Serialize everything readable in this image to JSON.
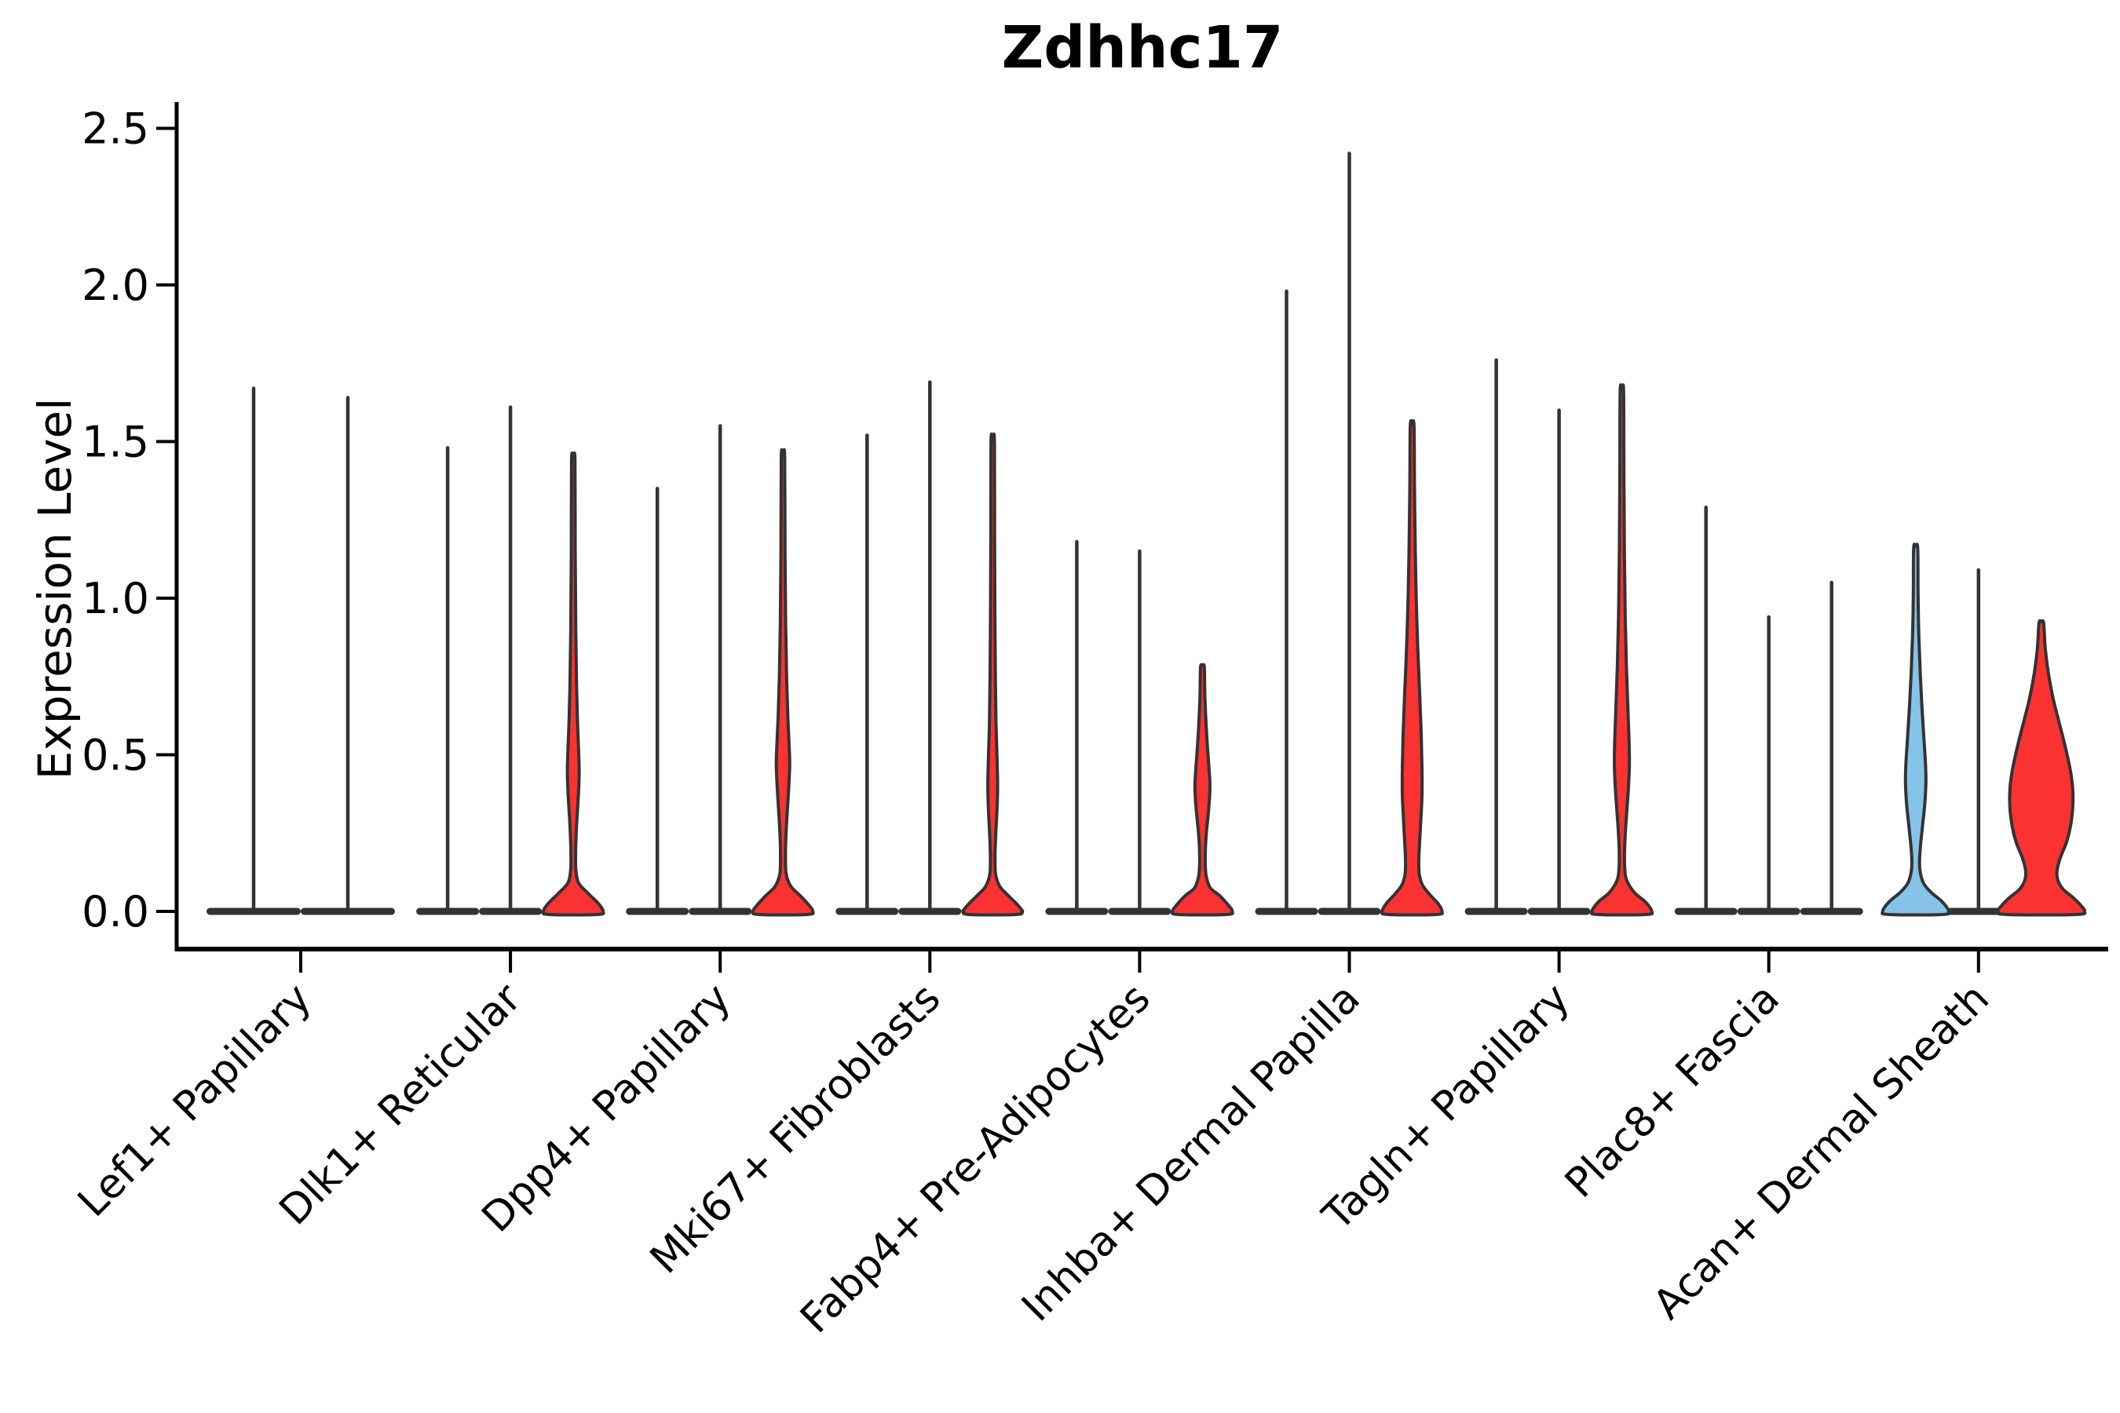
{
  "title": "Zdhhc17",
  "y_axis": {
    "label": "Expression Level",
    "tick_labels": [
      "0.0",
      "0.5",
      "1.0",
      "1.5",
      "2.0",
      "2.5"
    ],
    "tick_values": [
      0.0,
      0.5,
      1.0,
      1.5,
      2.0,
      2.5
    ]
  },
  "colors": {
    "red_fill": "#FA3232",
    "blue_fill": "#85C3E9",
    "violin_outline": "#333333",
    "axis": "#000000",
    "text": "#000000"
  },
  "chart_data": {
    "type": "violin",
    "title": "Zdhhc17",
    "ylabel": "Expression Level",
    "ylim": [
      -0.12,
      2.58
    ],
    "grid": false,
    "legend": "none",
    "categories": [
      "Lef1+ Papillary",
      "Dlk1+ Reticular",
      "Dpp4+ Papillary",
      "Mki67+ Fibroblasts",
      "Fabp4+ Pre-Adipocytes",
      "Inhba+ Dermal Papilla",
      "Tagln+ Papillary",
      "Plac8+ Fascia",
      "Acan+ Dermal Sheath"
    ],
    "groups": [
      {
        "category": "Lef1+ Papillary",
        "violins": [
          {
            "fill": "none",
            "max": 1.67
          },
          {
            "fill": "none",
            "max": 1.64
          }
        ]
      },
      {
        "category": "Dlk1+ Reticular",
        "violins": [
          {
            "fill": "none",
            "max": 1.48
          },
          {
            "fill": "none",
            "max": 1.61
          },
          {
            "fill": "red",
            "max": 1.44,
            "profile": [
              [
                1.44,
                2.2
              ],
              [
                1.15,
                2.5
              ],
              [
                0.9,
                3.2
              ],
              [
                0.72,
                4.2
              ],
              [
                0.6,
                5.5
              ],
              [
                0.5,
                7.0
              ],
              [
                0.44,
                7.5
              ],
              [
                0.37,
                6.5
              ],
              [
                0.3,
                4.8
              ],
              [
                0.24,
                3.6
              ],
              [
                0.18,
                3.0
              ],
              [
                0.13,
                3.4
              ],
              [
                0.09,
                7
              ],
              [
                0.055,
                20
              ],
              [
                0.025,
                32
              ],
              [
                0,
                38
              ]
            ]
          }
        ]
      },
      {
        "category": "Dpp4+ Papillary",
        "violins": [
          {
            "fill": "none",
            "max": 1.35
          },
          {
            "fill": "none",
            "max": 1.55
          },
          {
            "fill": "red",
            "max": 1.45,
            "profile": [
              [
                1.45,
                2.2
              ],
              [
                1.15,
                2.6
              ],
              [
                0.92,
                3.4
              ],
              [
                0.75,
                4.6
              ],
              [
                0.62,
                6.2
              ],
              [
                0.52,
                8.0
              ],
              [
                0.46,
                8.5
              ],
              [
                0.38,
                7.0
              ],
              [
                0.3,
                5.0
              ],
              [
                0.23,
                3.6
              ],
              [
                0.17,
                3.2
              ],
              [
                0.12,
                4.0
              ],
              [
                0.08,
                10
              ],
              [
                0.05,
                22
              ],
              [
                0.02,
                33
              ],
              [
                0,
                38
              ]
            ]
          }
        ]
      },
      {
        "category": "Mki67+ Fibroblasts",
        "violins": [
          {
            "fill": "none",
            "max": 1.52
          },
          {
            "fill": "none",
            "max": 1.69
          },
          {
            "fill": "red",
            "max": 1.5,
            "profile": [
              [
                1.5,
                2.2
              ],
              [
                1.2,
                2.4
              ],
              [
                0.95,
                2.8
              ],
              [
                0.75,
                3.4
              ],
              [
                0.6,
                4.2
              ],
              [
                0.49,
                5.5
              ],
              [
                0.42,
                6.2
              ],
              [
                0.36,
                6.0
              ],
              [
                0.3,
                5.0
              ],
              [
                0.24,
                3.8
              ],
              [
                0.18,
                3.0
              ],
              [
                0.12,
                3.6
              ],
              [
                0.08,
                9
              ],
              [
                0.05,
                20
              ],
              [
                0.02,
                32
              ],
              [
                0,
                37
              ]
            ]
          }
        ]
      },
      {
        "category": "Fabp4+ Pre-Adipocytes",
        "violins": [
          {
            "fill": "none",
            "max": 1.18
          },
          {
            "fill": "none",
            "max": 1.15
          },
          {
            "fill": "red",
            "max": 0.78,
            "profile": [
              [
                0.78,
                2.4
              ],
              [
                0.7,
                3.0
              ],
              [
                0.62,
                4.2
              ],
              [
                0.54,
                6.0
              ],
              [
                0.47,
                8.0
              ],
              [
                0.41,
                9.5
              ],
              [
                0.36,
                9.0
              ],
              [
                0.3,
                7.0
              ],
              [
                0.25,
                5.0
              ],
              [
                0.2,
                3.8
              ],
              [
                0.15,
                3.6
              ],
              [
                0.11,
                5.0
              ],
              [
                0.075,
                10
              ],
              [
                0.05,
                22
              ],
              [
                0.02,
                33
              ],
              [
                0,
                38
              ]
            ]
          }
        ]
      },
      {
        "category": "Inhba+ Dermal Papilla",
        "violins": [
          {
            "fill": "none",
            "max": 1.98
          },
          {
            "fill": "none",
            "max": 2.42
          },
          {
            "fill": "red",
            "max": 1.55,
            "profile": [
              [
                1.55,
                2.4
              ],
              [
                1.35,
                3.0
              ],
              [
                1.15,
                4.0
              ],
              [
                1.0,
                5.2
              ],
              [
                0.85,
                7.0
              ],
              [
                0.7,
                9.5
              ],
              [
                0.57,
                11.5
              ],
              [
                0.46,
                12.5
              ],
              [
                0.37,
                12.5
              ],
              [
                0.29,
                11.0
              ],
              [
                0.22,
                9.5
              ],
              [
                0.165,
                8.5
              ],
              [
                0.12,
                9.0
              ],
              [
                0.085,
                13
              ],
              [
                0.055,
                22
              ],
              [
                0.025,
                33
              ],
              [
                0,
                38
              ]
            ]
          }
        ]
      },
      {
        "category": "Tagln+ Papillary",
        "violins": [
          {
            "fill": "none",
            "max": 1.76
          },
          {
            "fill": "none",
            "max": 1.6
          },
          {
            "fill": "red",
            "max": 1.66,
            "profile": [
              [
                1.66,
                2.2
              ],
              [
                1.4,
                2.6
              ],
              [
                1.15,
                3.2
              ],
              [
                0.95,
                4.2
              ],
              [
                0.78,
                5.8
              ],
              [
                0.64,
                7.8
              ],
              [
                0.54,
                9.2
              ],
              [
                0.46,
                9.5
              ],
              [
                0.38,
                8.0
              ],
              [
                0.31,
                6.0
              ],
              [
                0.25,
                4.4
              ],
              [
                0.19,
                3.4
              ],
              [
                0.14,
                3.6
              ],
              [
                0.1,
                6
              ],
              [
                0.06,
                16
              ],
              [
                0.03,
                30
              ],
              [
                0,
                38
              ]
            ]
          }
        ]
      },
      {
        "category": "Plac8+ Fascia",
        "violins": [
          {
            "fill": "none",
            "max": 1.29
          },
          {
            "fill": "none",
            "max": 0.94
          },
          {
            "fill": "none",
            "max": 1.05
          }
        ]
      },
      {
        "category": "Acan+ Dermal Sheath",
        "violins": [
          {
            "fill": "blue",
            "max": 1.16,
            "profile": [
              [
                1.16,
                2.6
              ],
              [
                1.02,
                3.0
              ],
              [
                0.88,
                4.0
              ],
              [
                0.76,
                5.8
              ],
              [
                0.65,
                8.0
              ],
              [
                0.55,
                10.5
              ],
              [
                0.47,
                12.5
              ],
              [
                0.41,
                13.0
              ],
              [
                0.34,
                11.5
              ],
              [
                0.28,
                9.0
              ],
              [
                0.22,
                6.5
              ],
              [
                0.17,
                5.0
              ],
              [
                0.13,
                5.5
              ],
              [
                0.09,
                10
              ],
              [
                0.06,
                20
              ],
              [
                0.03,
                34
              ],
              [
                0,
                42
              ]
            ]
          },
          {
            "fill": "none",
            "max": 1.09
          },
          {
            "fill": "red",
            "max": 0.92,
            "profile": [
              [
                0.92,
                3
              ],
              [
                0.84,
                5
              ],
              [
                0.76,
                9
              ],
              [
                0.68,
                15
              ],
              [
                0.6,
                23
              ],
              [
                0.52,
                31
              ],
              [
                0.45,
                37
              ],
              [
                0.39,
                40
              ],
              [
                0.33,
                40
              ],
              [
                0.27,
                37
              ],
              [
                0.22,
                32
              ],
              [
                0.17,
                24
              ],
              [
                0.13,
                20
              ],
              [
                0.1,
                21
              ],
              [
                0.07,
                28
              ],
              [
                0.045,
                40
              ],
              [
                0.02,
                50
              ],
              [
                0,
                55
              ]
            ]
          }
        ]
      }
    ]
  }
}
